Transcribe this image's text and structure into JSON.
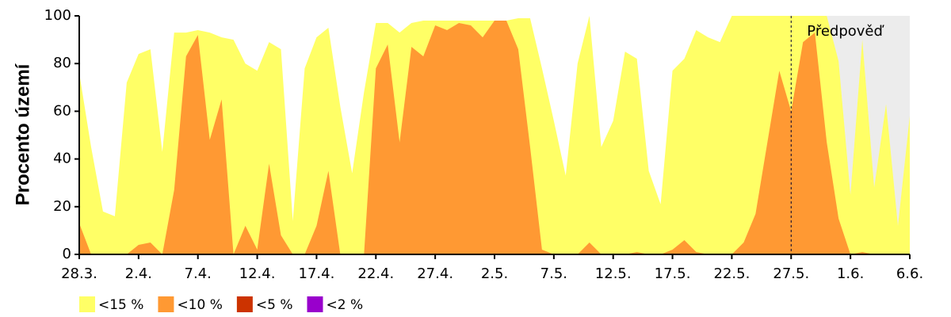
{
  "chart_data": {
    "type": "area",
    "y_label": "Procento území",
    "categories": [
      "28.3.",
      null,
      null,
      null,
      null,
      "2.4.",
      null,
      null,
      null,
      null,
      "7.4.",
      null,
      null,
      null,
      null,
      "12.4.",
      null,
      null,
      null,
      null,
      "17.4.",
      null,
      null,
      null,
      null,
      "22.4.",
      null,
      null,
      null,
      null,
      "27.4.",
      null,
      null,
      null,
      null,
      "2.5.",
      null,
      null,
      null,
      null,
      "7.5.",
      null,
      null,
      null,
      null,
      "12.5.",
      null,
      null,
      null,
      null,
      "17.5.",
      null,
      null,
      null,
      null,
      "22.5.",
      null,
      null,
      null,
      null,
      "27.5.",
      null,
      null,
      null,
      null,
      "1.6.",
      null,
      null,
      null,
      null,
      "6.6."
    ],
    "series": [
      {
        "name": "<15 %",
        "color": "#ffff66",
        "values": [
          76,
          45,
          18,
          16,
          72,
          84,
          86,
          43,
          93,
          93,
          94,
          93,
          91,
          90,
          80,
          77,
          89,
          86,
          14,
          78,
          91,
          95,
          62,
          34,
          68,
          97,
          97,
          93,
          97,
          98,
          98,
          98,
          98,
          98,
          98,
          98,
          98,
          99,
          99,
          78,
          56,
          33,
          80,
          100,
          45,
          56,
          85,
          82,
          35,
          21,
          77,
          82,
          94,
          91,
          89,
          100,
          100,
          100,
          100,
          100,
          100,
          100,
          100,
          100,
          81,
          25,
          90,
          28,
          63,
          12,
          58
        ]
      },
      {
        "name": "<10 %",
        "color": "#ff9933",
        "values": [
          13,
          0,
          0,
          0,
          0,
          4,
          5,
          0,
          27,
          83,
          92,
          48,
          65,
          0,
          12,
          2,
          38,
          8,
          0,
          0,
          12,
          35,
          0,
          0,
          0,
          78,
          88,
          47,
          87,
          83,
          96,
          94,
          97,
          96,
          91,
          98,
          98,
          86,
          45,
          2,
          0,
          0,
          0,
          5,
          0,
          0,
          0,
          1,
          0,
          0,
          2,
          6,
          1,
          0,
          0,
          0,
          5,
          17,
          47,
          77,
          60,
          89,
          93,
          47,
          15,
          0,
          1,
          0,
          0,
          0,
          0
        ]
      },
      {
        "name": "<5 %",
        "color": "#cc3300",
        "values": [
          0,
          0,
          0,
          0,
          0,
          0,
          0,
          0,
          0,
          0,
          0,
          0,
          0,
          0,
          0,
          0,
          0,
          0,
          0,
          0,
          0,
          0,
          0,
          0,
          0,
          0,
          0,
          0,
          0,
          0,
          0,
          0,
          0,
          0,
          0,
          0,
          0,
          0,
          0,
          0,
          0,
          0,
          0,
          0,
          0,
          0,
          0,
          0,
          0,
          0,
          0,
          0,
          0,
          0,
          0,
          0,
          0,
          0,
          0,
          0,
          0,
          0,
          0,
          0,
          0,
          0,
          0,
          0,
          0,
          0,
          0
        ]
      },
      {
        "name": "<2 %",
        "color": "#9900cc",
        "values": [
          0,
          0,
          0,
          0,
          0,
          0,
          0,
          0,
          0,
          0,
          0,
          0,
          0,
          0,
          0,
          0,
          0,
          0,
          0,
          0,
          0,
          0,
          0,
          0,
          0,
          0,
          0,
          0,
          0,
          0,
          0,
          0,
          0,
          0,
          0,
          0,
          0,
          0,
          0,
          0,
          0,
          0,
          0,
          0,
          0,
          0,
          0,
          0,
          0,
          0,
          0,
          0,
          0,
          0,
          0,
          0,
          0,
          0,
          0,
          0,
          0,
          0,
          0,
          0,
          0,
          0,
          0,
          0,
          0,
          0,
          0
        ]
      }
    ],
    "ylim": [
      0,
      100
    ],
    "yticks": [
      0,
      20,
      40,
      60,
      80,
      100
    ],
    "forecast_from": "27.5.",
    "forecast_label": "Předpověď",
    "forecast_color": "#ececec",
    "legend": "bottom"
  }
}
